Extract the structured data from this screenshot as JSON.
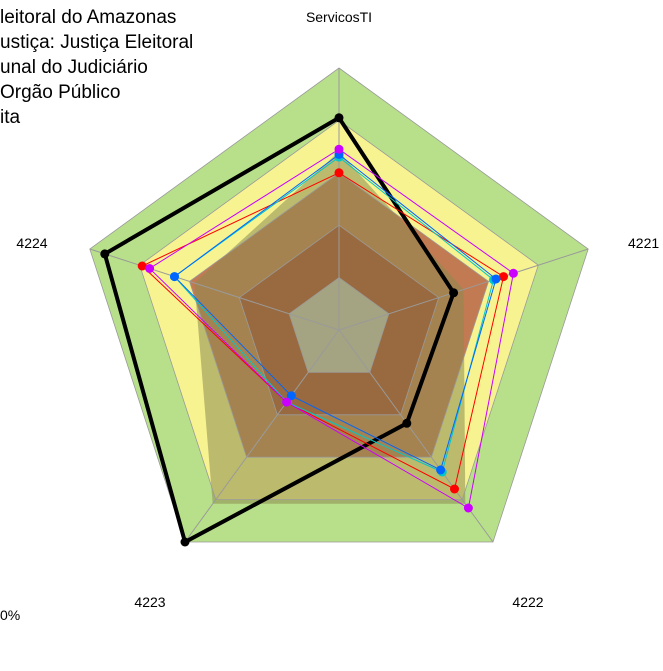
{
  "chart_data": {
    "type": "radar",
    "axes": [
      "ServicosTI",
      "4221",
      "4222",
      "4223",
      "4224"
    ],
    "scale": [
      0,
      1
    ],
    "bands": [
      {
        "upper": 0.2,
        "color": "#c0c0c0"
      },
      {
        "upper": 0.4,
        "color": "#a9432d"
      },
      {
        "upper": 0.6,
        "color": "#c27a52"
      },
      {
        "upper": 0.8,
        "color": "#f7f391"
      },
      {
        "upper": 1.0,
        "color": "#b8e08a"
      }
    ],
    "reference_fill": {
      "values": [
        0.68,
        0.5,
        0.82,
        0.82,
        0.58
      ],
      "color": "#8d8a4e"
    },
    "series": [
      {
        "values": [
          0.81,
          0.46,
          0.44,
          1.0,
          0.94
        ],
        "color": "#000000"
      },
      {
        "values": [
          0.6,
          0.66,
          0.75,
          0.34,
          0.79
        ],
        "color": "#ff0000"
      },
      {
        "values": [
          0.66,
          0.62,
          0.67,
          0.34,
          0.66
        ],
        "color": "#00c8c8"
      },
      {
        "values": [
          0.67,
          0.63,
          0.66,
          0.31,
          0.66
        ],
        "color": "#0066ff"
      },
      {
        "values": [
          0.69,
          0.7,
          0.84,
          0.34,
          0.76
        ],
        "color": "#cc00ff"
      }
    ],
    "legend": [
      "leitoral do Amazonas",
      "ustiça: Justiça Eleitoral",
      "unal do Judiciário",
      "Orgão Público",
      "ita"
    ],
    "corner_note": "0%"
  }
}
